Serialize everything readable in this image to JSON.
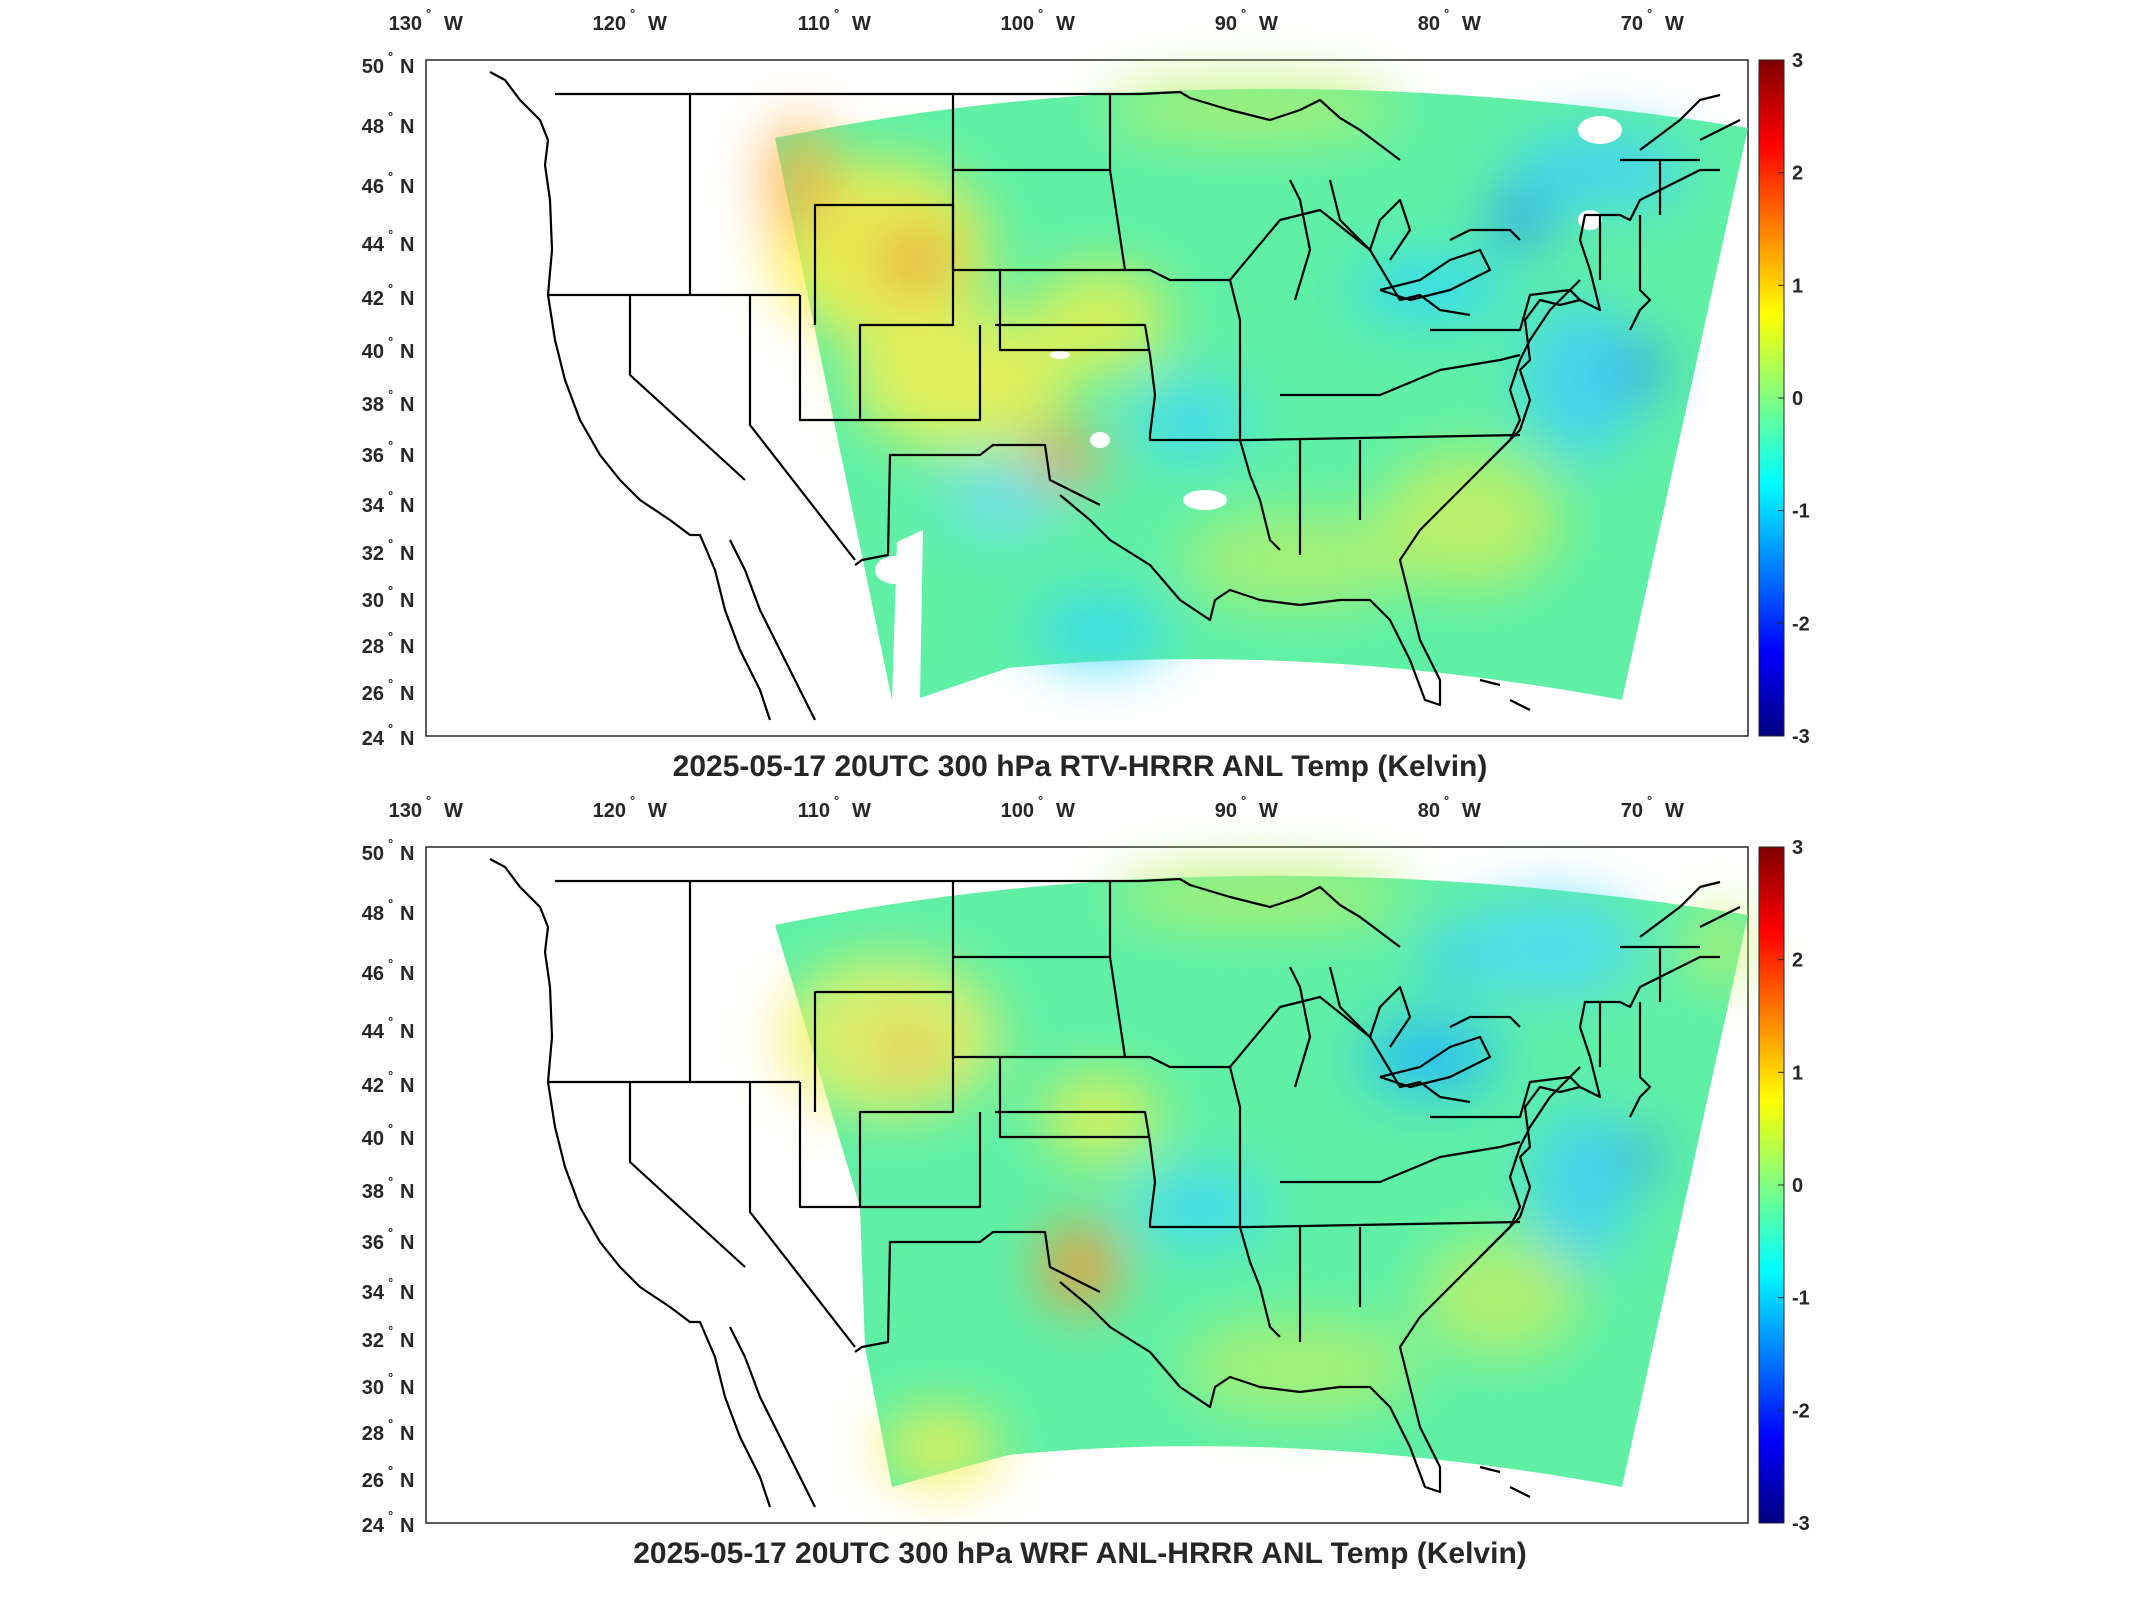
{
  "lon_ticks": [
    {
      "value": "130",
      "hemi": "W"
    },
    {
      "value": "120",
      "hemi": "W"
    },
    {
      "value": "110",
      "hemi": "W"
    },
    {
      "value": "100",
      "hemi": "W"
    },
    {
      "value": "90",
      "hemi": "W"
    },
    {
      "value": "80",
      "hemi": "W"
    },
    {
      "value": "70",
      "hemi": "W"
    }
  ],
  "lat_ticks": [
    {
      "value": "50",
      "hemi": "N"
    },
    {
      "value": "48",
      "hemi": "N"
    },
    {
      "value": "46",
      "hemi": "N"
    },
    {
      "value": "44",
      "hemi": "N"
    },
    {
      "value": "42",
      "hemi": "N"
    },
    {
      "value": "40",
      "hemi": "N"
    },
    {
      "value": "38",
      "hemi": "N"
    },
    {
      "value": "36",
      "hemi": "N"
    },
    {
      "value": "34",
      "hemi": "N"
    },
    {
      "value": "32",
      "hemi": "N"
    },
    {
      "value": "30",
      "hemi": "N"
    },
    {
      "value": "28",
      "hemi": "N"
    },
    {
      "value": "26",
      "hemi": "N"
    },
    {
      "value": "24",
      "hemi": "N"
    }
  ],
  "colorbar": {
    "ticks": [
      "3",
      "2",
      "1",
      "0",
      "-1",
      "-2",
      "-3"
    ],
    "colormap": [
      "#800000",
      "#ff0000",
      "#ff8000",
      "#ffff00",
      "#80ff80",
      "#00ffff",
      "#0080ff",
      "#0000ff",
      "#000080"
    ]
  },
  "colors": {
    "field_base": "#5ff0a6",
    "coast_lines": "#000000",
    "missing_data": "#ffffff"
  },
  "panels": [
    {
      "title": "2025-05-17 20UTC 300 hPa RTV-HRRR ANL Temp (Kelvin)"
    },
    {
      "title": "2025-05-17 20UTC 300 hPa WRF ANL-HRRR ANL Temp (Kelvin)"
    }
  ]
}
